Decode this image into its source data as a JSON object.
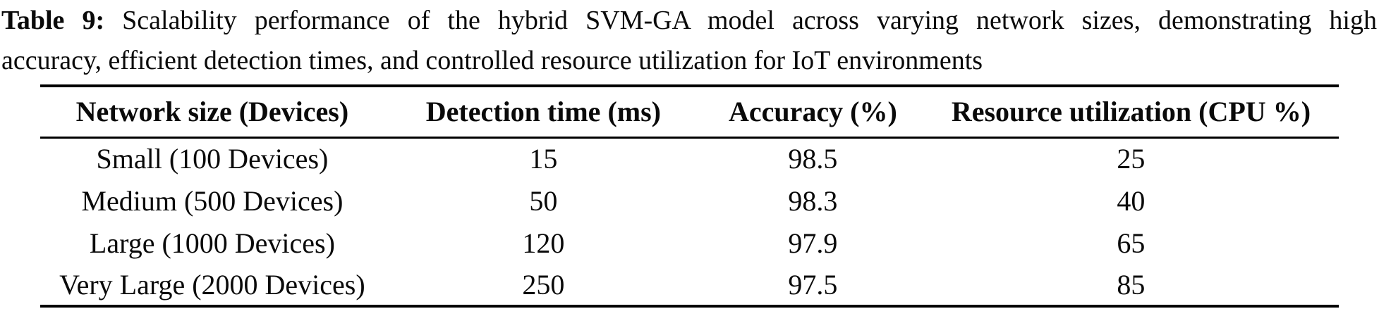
{
  "caption": {
    "label": "Table 9:",
    "line1": "Scalability performance of the hybrid SVM-GA model across varying network sizes, demonstrating high",
    "line2": "accuracy, efficient detection times, and controlled resource utilization for IoT environments"
  },
  "chart_data": {
    "type": "table",
    "title": "Table 9: Scalability performance of the hybrid SVM-GA model across varying network sizes, demonstrating high accuracy, efficient detection times, and controlled resource utilization for IoT environments",
    "columns": [
      "Network size (Devices)",
      "Detection time (ms)",
      "Accuracy (%)",
      "Resource utilization (CPU %)"
    ],
    "rows": [
      [
        "Small (100 Devices)",
        "15",
        "98.5",
        "25"
      ],
      [
        "Medium (500 Devices)",
        "50",
        "98.3",
        "40"
      ],
      [
        "Large (1000 Devices)",
        "120",
        "97.9",
        "65"
      ],
      [
        "Very Large (2000 Devices)",
        "250",
        "97.5",
        "85"
      ]
    ]
  },
  "table": {
    "columns": [
      "Network size (Devices)",
      "Detection time (ms)",
      "Accuracy (%)",
      "Resource utilization (CPU %)"
    ],
    "rows": [
      [
        "Small (100 Devices)",
        "15",
        "98.5",
        "25"
      ],
      [
        "Medium (500 Devices)",
        "50",
        "98.3",
        "40"
      ],
      [
        "Large (1000 Devices)",
        "120",
        "97.9",
        "65"
      ],
      [
        "Very Large (2000 Devices)",
        "250",
        "97.5",
        "85"
      ]
    ]
  },
  "colors": {
    "text": "#0a0a0a",
    "background": "#ffffff",
    "rule": "#000000"
  }
}
